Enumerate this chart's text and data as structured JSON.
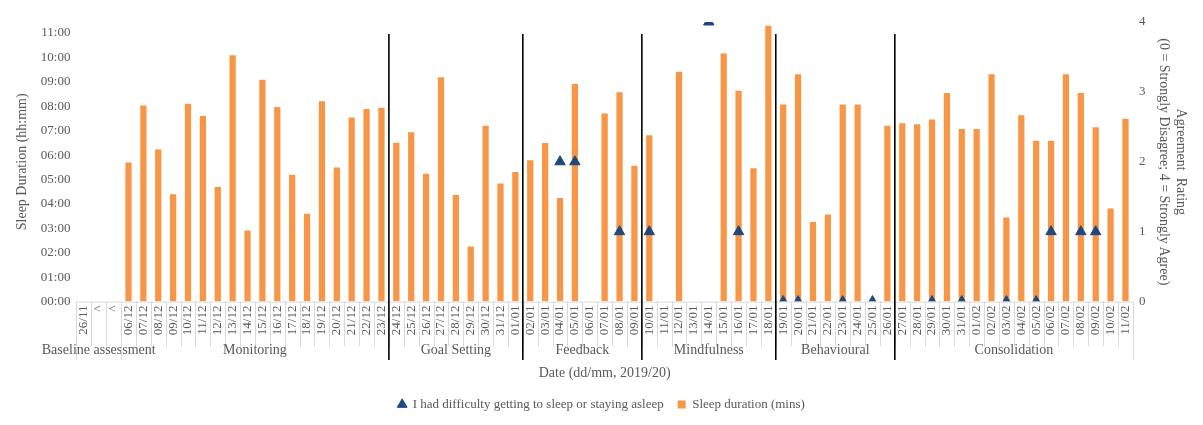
{
  "chart_data": {
    "type": "bar",
    "xlabel": "Date (dd/mm, 2019/20)",
    "ylabel": "Sleep Duration (hh:mm)",
    "y2label": "Agreement  Rating\n(0 = Strongly Disagree; 4 = Strongly Agree)",
    "categories": [
      "26/11",
      "^",
      "^",
      "06/12",
      "07/12",
      "08/12",
      "09/12",
      "10/12",
      "11/12",
      "12/12",
      "13/12",
      "14/12",
      "15/12",
      "16/12",
      "17/12",
      "18/12",
      "19/12",
      "20/12",
      "21/12",
      "22/12",
      "23/12",
      "24/12",
      "25/12",
      "26/12",
      "27/12",
      "28/12",
      "29/12",
      "30/12",
      "31/12",
      "01/01",
      "02/01",
      "03/01",
      "04/01",
      "05/01",
      "06/01",
      "07/01",
      "08/01",
      "09/01",
      "10/01",
      "11/01",
      "12/01",
      "13/01",
      "14/01",
      "15/01",
      "16/01",
      "17/01",
      "18/01",
      "19/01",
      "20/01",
      "21/01",
      "22/01",
      "23/01",
      "24/01",
      "25/01",
      "26/01",
      "27/01",
      "28/01",
      "29/01",
      "30/01",
      "31/01",
      "01/02",
      "02/02",
      "03/02",
      "04/02",
      "05/02",
      "06/02",
      "07/02",
      "08/02",
      "09/02",
      "10/02",
      "11/02"
    ],
    "series": [
      {
        "name": "Sleep duration (mins)",
        "color": "#f79646",
        "values": [
          null,
          null,
          null,
          5.7,
          8.03,
          6.23,
          4.4,
          8.1,
          7.6,
          4.69,
          10.09,
          2.91,
          9.09,
          7.97,
          5.19,
          3.6,
          8.2,
          5.49,
          7.54,
          7.89,
          7.94,
          6.51,
          6.93,
          5.24,
          9.19,
          4.37,
          2.26,
          7.2,
          4.84,
          5.31,
          5.79,
          6.49,
          4.24,
          8.91,
          null,
          7.7,
          8.57,
          5.56,
          6.81,
          null,
          9.41,
          null,
          null,
          10.16,
          8.63,
          5.46,
          11.3,
          8.07,
          9.31,
          3.26,
          3.57,
          8.07,
          8.07,
          null,
          7.2,
          7.3,
          7.26,
          7.46,
          8.54,
          7.07,
          7.07,
          9.31,
          3.44,
          7.63,
          6.59,
          6.59,
          9.31,
          8.54,
          7.14,
          3.81,
          7.49
        ]
      },
      {
        "name": "I had difficulty getting to sleep or staying asleep",
        "type": "scatter",
        "axis": "y2",
        "color": "#1f497d",
        "marker": "triangle",
        "values": [
          null,
          null,
          null,
          null,
          null,
          null,
          null,
          null,
          null,
          null,
          null,
          null,
          null,
          null,
          null,
          null,
          null,
          null,
          null,
          null,
          null,
          null,
          null,
          null,
          null,
          null,
          null,
          null,
          null,
          null,
          null,
          null,
          2,
          2,
          null,
          null,
          1,
          null,
          1,
          null,
          null,
          null,
          4,
          null,
          1,
          null,
          null,
          0,
          0,
          null,
          null,
          0,
          null,
          0,
          null,
          null,
          null,
          0,
          null,
          0,
          null,
          null,
          0,
          null,
          0,
          1,
          null,
          1,
          1,
          null,
          null
        ]
      }
    ],
    "ylim": [
      0,
      11.45
    ],
    "yticks": [
      {
        "value": 0,
        "label": "00:00"
      },
      {
        "value": 1,
        "label": "01:00"
      },
      {
        "value": 2,
        "label": "02:00"
      },
      {
        "value": 3,
        "label": "03:00"
      },
      {
        "value": 4,
        "label": "04:00"
      },
      {
        "value": 5,
        "label": "05:00"
      },
      {
        "value": 6,
        "label": "06:00"
      },
      {
        "value": 7,
        "label": "07:00"
      },
      {
        "value": 8,
        "label": "08:00"
      },
      {
        "value": 9,
        "label": "09:00"
      },
      {
        "value": 10,
        "label": "10:00"
      },
      {
        "value": 11,
        "label": "11:00"
      }
    ],
    "y2lim": [
      0,
      4
    ],
    "y2ticks": [
      0,
      1,
      2,
      3,
      4
    ],
    "annotations": [
      "Baseline assessment",
      "Monitoring",
      "Goal Setting",
      "Feedback",
      "Mindfulness",
      "Behavioural",
      "Consolidation"
    ],
    "grid": false,
    "legend": "bottom"
  }
}
